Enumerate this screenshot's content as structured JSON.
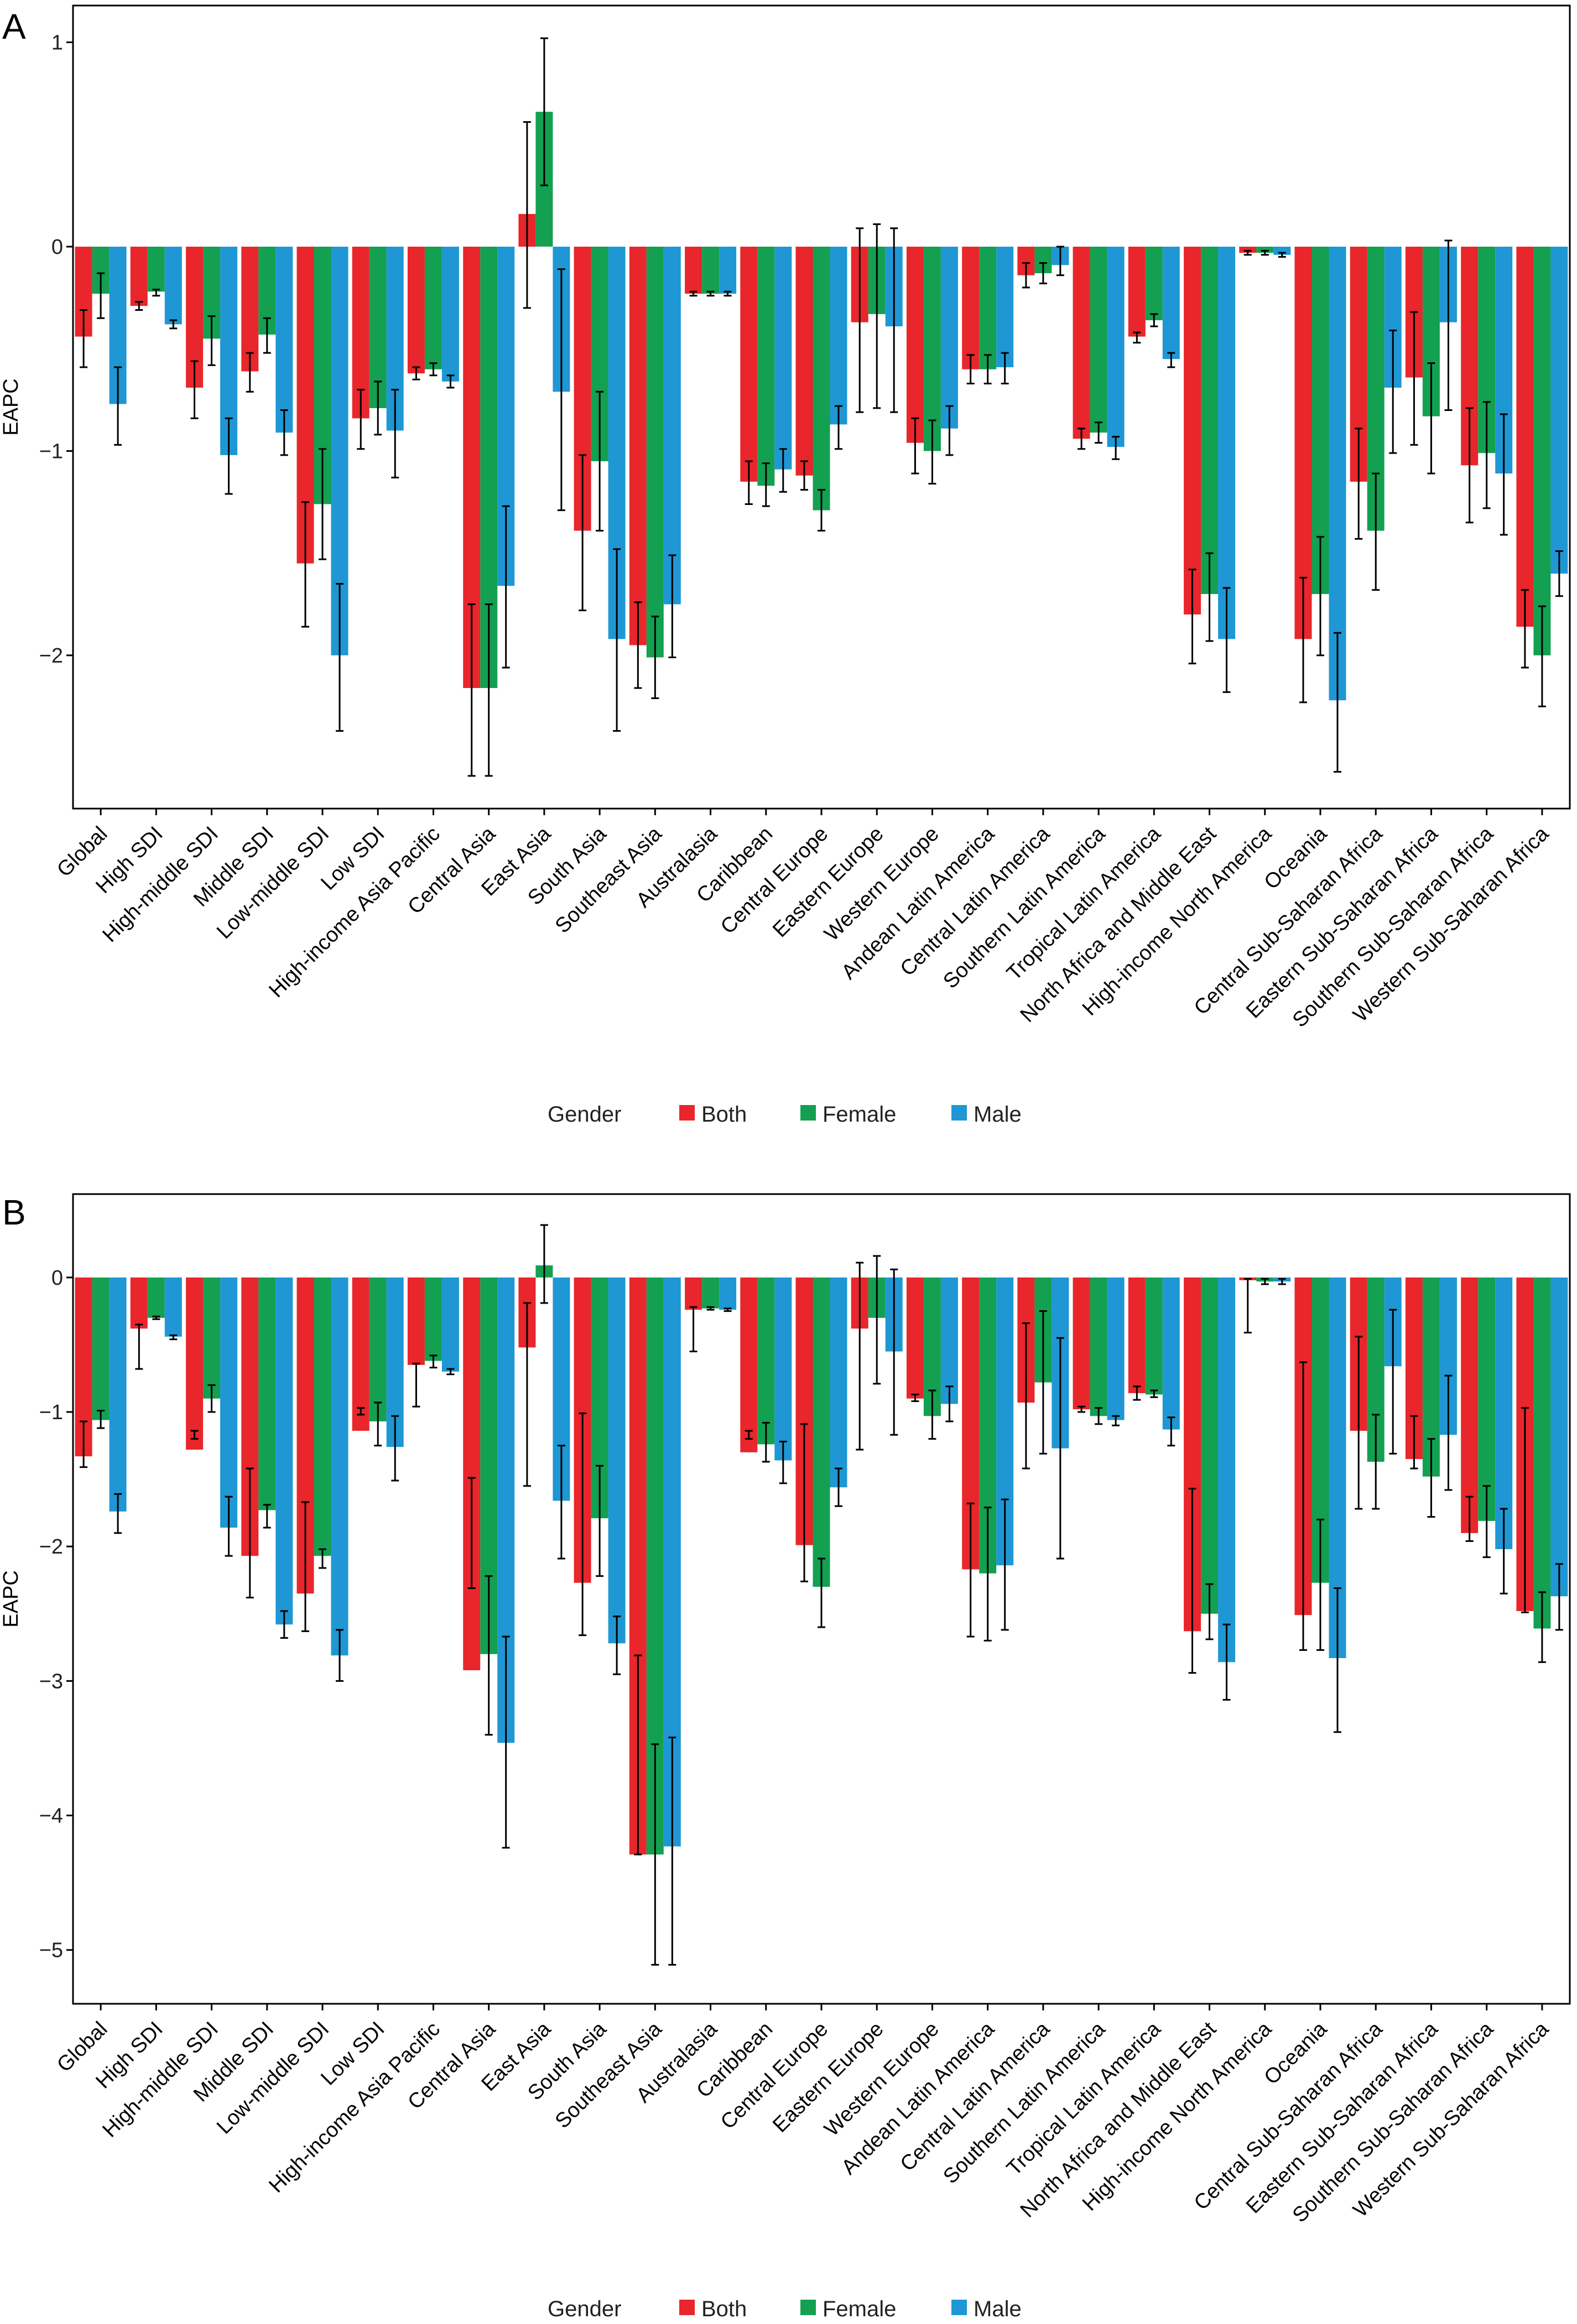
{
  "chart_data": [
    {
      "type": "bar",
      "panel_label": "A",
      "ylabel": "EAPC",
      "yticks": [
        1,
        0,
        -1,
        -2
      ],
      "ylim": [
        -2.75,
        1.18
      ],
      "legend": {
        "title": "Gender",
        "position": "bottom",
        "entries": [
          "Both",
          "Female",
          "Male"
        ]
      },
      "categories": [
        "Global",
        "High SDI",
        "High-middle SDI",
        "Middle SDI",
        "Low-middle SDI",
        "Low SDI",
        "High-income Asia Pacific",
        "Central Asia",
        "East Asia",
        "South Asia",
        "Southeast Asia",
        "Australasia",
        "Caribbean",
        "Central Europe",
        "Eastern Europe",
        "Western Europe",
        "Andean Latin America",
        "Central Latin America",
        "Southern Latin America",
        "Tropical Latin America",
        "North Africa and Middle East",
        "High-income North America",
        "Oceania",
        "Central Sub-Saharan Africa",
        "Eastern Sub-Saharan Africa",
        "Southern Sub-Saharan Africa",
        "Western Sub-Saharan Africa"
      ],
      "series": [
        {
          "name": "Both",
          "color": "#e8262b",
          "values": [
            -0.44,
            -0.29,
            -0.69,
            -0.61,
            -1.55,
            -0.84,
            -0.62,
            -2.16,
            0.16,
            -1.39,
            -1.95,
            -0.23,
            -1.15,
            -1.12,
            -0.37,
            -0.96,
            -0.6,
            -0.14,
            -0.94,
            -0.44,
            -1.8,
            -0.03,
            -1.92,
            -1.15,
            -0.64,
            -1.07,
            -1.86
          ],
          "lower": [
            -0.59,
            -0.31,
            -0.84,
            -0.71,
            -1.86,
            -0.99,
            -0.65,
            -2.59,
            -0.3,
            -1.78,
            -2.16,
            -0.24,
            -1.26,
            -1.19,
            -0.81,
            -1.11,
            -0.67,
            -0.2,
            -0.99,
            -0.47,
            -2.04,
            -0.04,
            -2.23,
            -1.43,
            -0.97,
            -1.35,
            -2.06
          ],
          "upper": [
            -0.31,
            -0.27,
            -0.56,
            -0.52,
            -1.25,
            -0.7,
            -0.59,
            -1.75,
            0.61,
            -1.02,
            -1.74,
            -0.22,
            -1.05,
            -1.05,
            0.09,
            -0.84,
            -0.53,
            -0.08,
            -0.89,
            -0.42,
            -1.58,
            -0.02,
            -1.62,
            -0.89,
            -0.32,
            -0.79,
            -1.68
          ]
        },
        {
          "name": "Female",
          "color": "#13a051",
          "values": [
            -0.23,
            -0.22,
            -0.45,
            -0.43,
            -1.26,
            -0.79,
            -0.6,
            -2.16,
            0.66,
            -1.05,
            -2.01,
            -0.23,
            -1.17,
            -1.29,
            -0.33,
            -1.0,
            -0.6,
            -0.13,
            -0.91,
            -0.36,
            -1.7,
            -0.03,
            -1.7,
            -1.39,
            -0.83,
            -1.01,
            -2.0
          ],
          "lower": [
            -0.35,
            -0.24,
            -0.58,
            -0.52,
            -1.53,
            -0.92,
            -0.63,
            -2.59,
            0.3,
            -1.39,
            -2.21,
            -0.24,
            -1.27,
            -1.39,
            -0.79,
            -1.16,
            -0.67,
            -0.18,
            -0.96,
            -0.39,
            -1.93,
            -0.04,
            -2.0,
            -1.68,
            -1.11,
            -1.28,
            -2.25
          ],
          "upper": [
            -0.13,
            -0.21,
            -0.34,
            -0.35,
            -0.99,
            -0.66,
            -0.57,
            -1.75,
            1.02,
            -0.71,
            -1.81,
            -0.22,
            -1.06,
            -1.19,
            0.11,
            -0.85,
            -0.53,
            -0.08,
            -0.86,
            -0.33,
            -1.5,
            -0.02,
            -1.42,
            -1.11,
            -0.57,
            -0.76,
            -1.76
          ]
        },
        {
          "name": "Male",
          "color": "#1f97d4",
          "values": [
            -0.77,
            -0.38,
            -1.02,
            -0.91,
            -2.0,
            -0.9,
            -0.66,
            -1.66,
            -0.71,
            -1.92,
            -1.75,
            -0.23,
            -1.09,
            -0.87,
            -0.39,
            -0.89,
            -0.59,
            -0.09,
            -0.98,
            -0.55,
            -1.92,
            -0.04,
            -2.22,
            -0.69,
            -0.37,
            -1.11,
            -1.6
          ],
          "lower": [
            -0.97,
            -0.4,
            -1.21,
            -1.02,
            -2.37,
            -1.13,
            -0.69,
            -2.06,
            -1.29,
            -2.37,
            -2.01,
            -0.24,
            -1.2,
            -0.99,
            -0.81,
            -1.02,
            -0.67,
            -0.14,
            -1.04,
            -0.59,
            -2.18,
            -0.05,
            -2.57,
            -1.01,
            -0.8,
            -1.41,
            -1.71
          ],
          "upper": [
            -0.59,
            -0.36,
            -0.84,
            -0.8,
            -1.65,
            -0.7,
            -0.63,
            -1.27,
            -0.11,
            -1.48,
            -1.51,
            -0.22,
            -0.99,
            -0.78,
            0.09,
            -0.78,
            -0.52,
            0.0,
            -0.93,
            -0.52,
            -1.67,
            -0.03,
            -1.89,
            -0.41,
            0.03,
            -0.82,
            -1.49
          ]
        }
      ]
    },
    {
      "type": "bar",
      "panel_label": "B",
      "ylabel": "EAPC",
      "yticks": [
        0,
        -1,
        -2,
        -3,
        -4,
        -5
      ],
      "ylim": [
        -5.4,
        0.62
      ],
      "legend": {
        "title": "Gender",
        "position": "bottom",
        "entries": [
          "Both",
          "Female",
          "Male"
        ]
      },
      "categories": [
        "Global",
        "High SDI",
        "High-middle SDI",
        "Middle SDI",
        "Low-middle SDI",
        "Low SDI",
        "High-income Asia Pacific",
        "Central Asia",
        "East Asia",
        "South Asia",
        "Southeast Asia",
        "Australasia",
        "Caribbean",
        "Central Europe",
        "Eastern Europe",
        "Western Europe",
        "Andean Latin America",
        "Central Latin America",
        "Southern Latin America",
        "Tropical Latin America",
        "North Africa and Middle East",
        "High-income North America",
        "Oceania",
        "Central Sub-Saharan Africa",
        "Eastern Sub-Saharan Africa",
        "Southern Sub-Saharan Africa",
        "Western Sub-Saharan Africa"
      ],
      "series": [
        {
          "name": "Both",
          "color": "#e8262b",
          "values": [
            -1.33,
            -0.38,
            -1.28,
            -2.07,
            -2.35,
            -1.14,
            -0.65,
            -2.92,
            -0.52,
            -2.27,
            -4.29,
            -0.24,
            -1.3,
            -1.99,
            -0.38,
            -0.9,
            -2.17,
            -0.93,
            -0.98,
            -0.86,
            -2.63,
            -0.02,
            -2.51,
            -1.14,
            -1.35,
            -1.9,
            -2.48
          ],
          "lower": [
            -1.41,
            -0.68,
            -1.2,
            -2.38,
            -2.63,
            -1.02,
            -0.96,
            -2.31,
            -1.55,
            -2.66,
            -4.29,
            -0.55,
            -1.2,
            -2.26,
            -1.28,
            -0.92,
            -2.67,
            -1.42,
            -1.0,
            -0.91,
            -2.94,
            -0.41,
            -2.77,
            -1.72,
            -1.42,
            -1.96,
            -2.49
          ],
          "upper": [
            -1.07,
            -0.35,
            -1.14,
            -1.42,
            -1.67,
            -0.97,
            -0.64,
            -1.49,
            -0.19,
            -1.01,
            -2.81,
            -0.22,
            -1.14,
            -1.09,
            0.11,
            -0.87,
            -1.68,
            -0.34,
            -0.96,
            -0.81,
            -1.57,
            -0.01,
            -0.63,
            -0.44,
            -1.03,
            -1.63,
            -0.97
          ]
        },
        {
          "name": "Female",
          "color": "#13a051",
          "values": [
            -1.06,
            -0.3,
            -0.9,
            -1.73,
            -2.07,
            -1.07,
            -0.62,
            -2.8,
            0.09,
            -1.79,
            -4.29,
            -0.23,
            -1.24,
            -2.3,
            -0.3,
            -1.03,
            -2.2,
            -0.78,
            -1.03,
            -0.87,
            -2.5,
            -0.03,
            -2.27,
            -1.37,
            -1.48,
            -1.81,
            -2.61
          ],
          "lower": [
            -1.12,
            -0.31,
            -1.0,
            -1.86,
            -2.16,
            -1.25,
            -0.67,
            -3.4,
            -0.19,
            -2.22,
            -5.11,
            -0.24,
            -1.37,
            -2.6,
            -0.79,
            -1.2,
            -2.7,
            -1.31,
            -1.09,
            -0.89,
            -2.69,
            -0.05,
            -2.77,
            -1.72,
            -1.78,
            -2.08,
            -2.86
          ],
          "upper": [
            -0.99,
            -0.29,
            -0.8,
            -1.69,
            -2.02,
            -0.93,
            -0.58,
            -2.22,
            0.39,
            -1.4,
            -3.47,
            -0.22,
            -1.08,
            -2.09,
            0.16,
            -0.84,
            -1.71,
            -0.25,
            -0.97,
            -0.84,
            -2.28,
            -0.01,
            -1.8,
            -1.02,
            -1.2,
            -1.55,
            -2.34
          ]
        },
        {
          "name": "Male",
          "color": "#1f97d4",
          "values": [
            -1.74,
            -0.44,
            -1.86,
            -2.58,
            -2.81,
            -1.26,
            -0.7,
            -3.46,
            -1.66,
            -2.72,
            -4.23,
            -0.24,
            -1.36,
            -1.56,
            -0.55,
            -0.94,
            -2.14,
            -1.27,
            -1.06,
            -1.13,
            -2.86,
            -0.03,
            -2.83,
            -0.66,
            -1.17,
            -2.02,
            -2.37
          ],
          "lower": [
            -1.9,
            -0.46,
            -2.07,
            -2.68,
            -3.0,
            -1.51,
            -0.72,
            -4.24,
            -2.09,
            -2.95,
            -5.11,
            -0.25,
            -1.53,
            -1.7,
            -1.17,
            -1.07,
            -2.62,
            -2.09,
            -1.1,
            -1.25,
            -3.14,
            -0.05,
            -3.38,
            -1.31,
            -1.58,
            -2.35,
            -2.62
          ],
          "upper": [
            -1.61,
            -0.43,
            -1.63,
            -2.48,
            -2.62,
            -1.03,
            -0.68,
            -2.67,
            -1.25,
            -2.52,
            -3.42,
            -0.23,
            -1.22,
            -1.42,
            0.06,
            -0.81,
            -1.65,
            -0.45,
            -1.03,
            -1.04,
            -2.58,
            -0.01,
            -2.31,
            -0.24,
            -0.73,
            -1.72,
            -2.13
          ]
        }
      ]
    }
  ]
}
